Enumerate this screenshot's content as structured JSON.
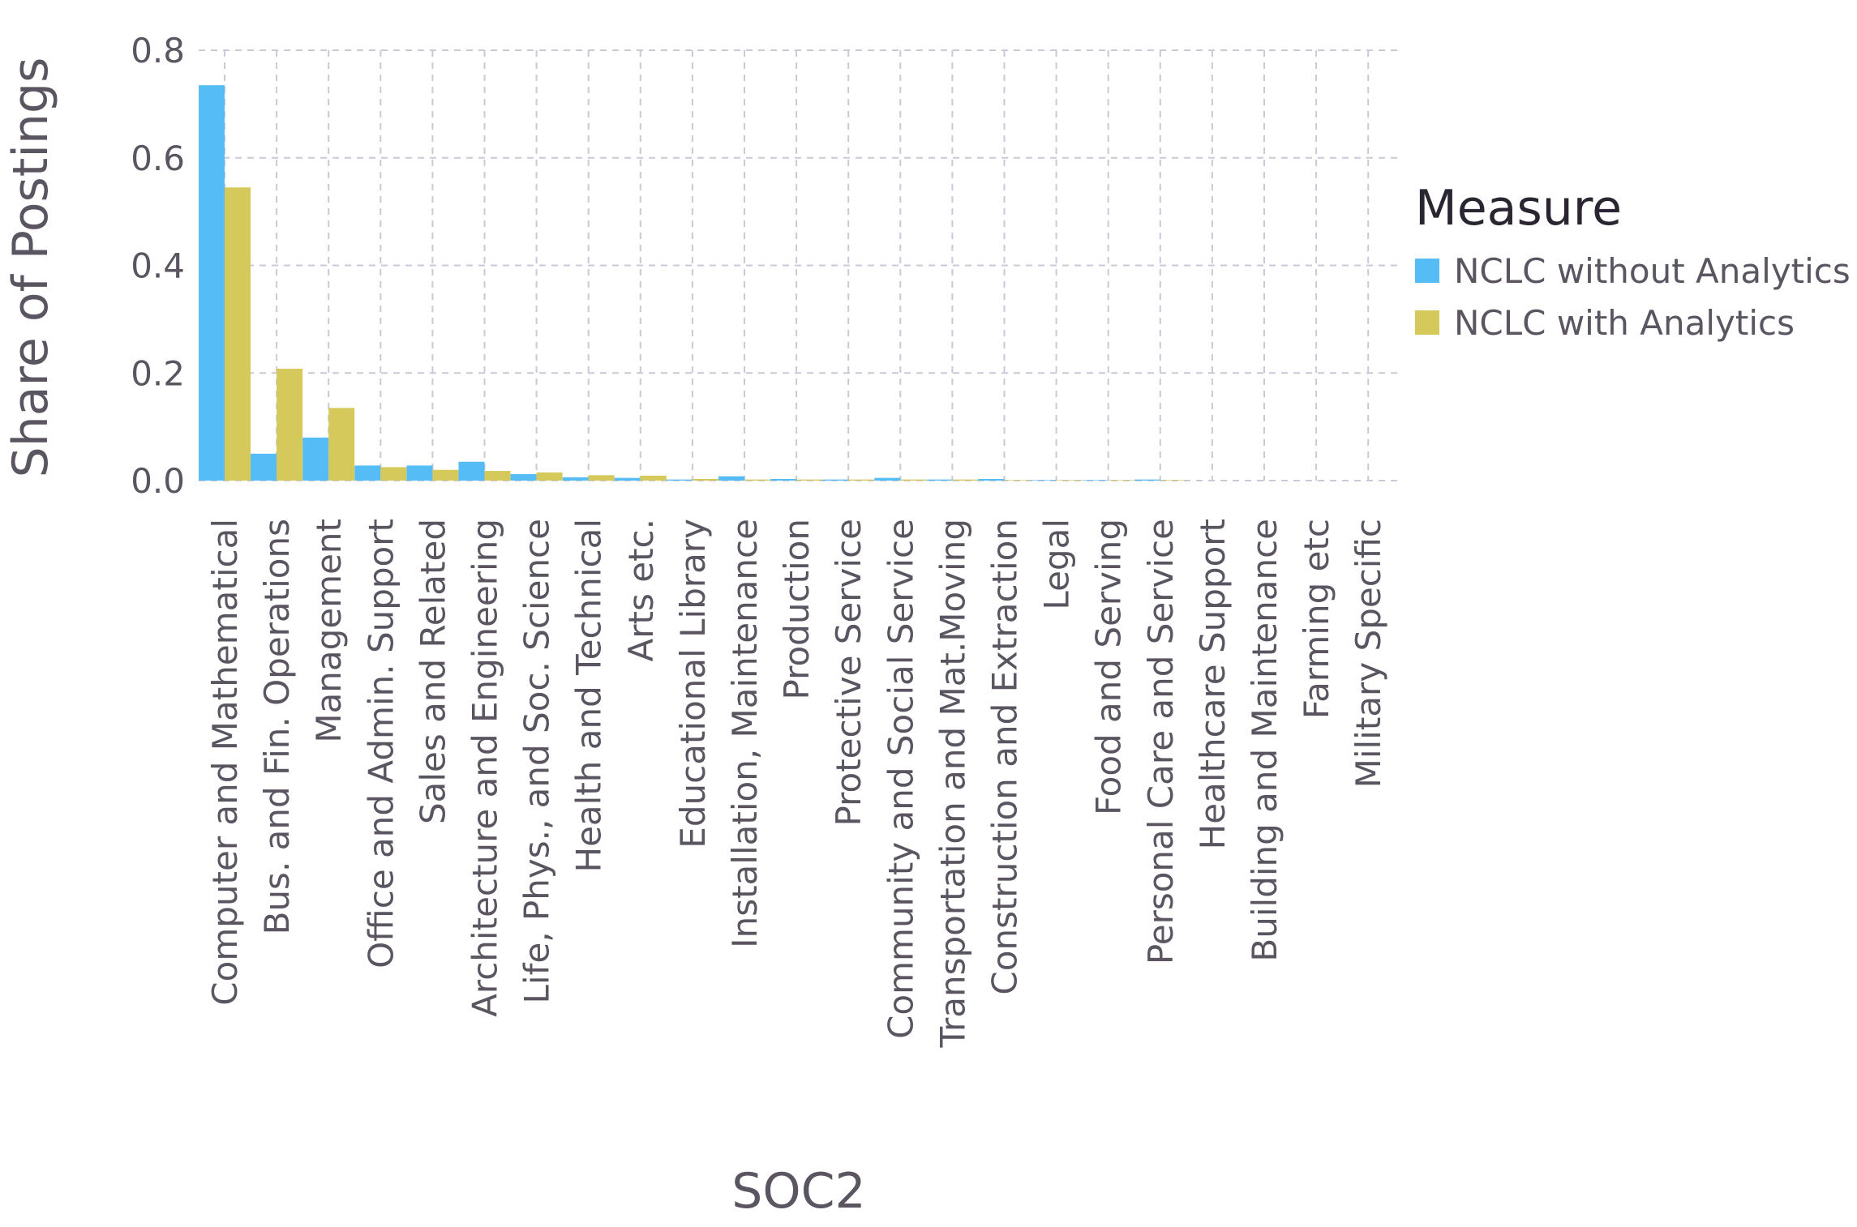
{
  "chart_data": {
    "type": "bar",
    "title": "",
    "xlabel": "SOC2",
    "ylabel": "Share of Postings",
    "ylim": [
      0,
      0.8
    ],
    "yticks": [
      "0.0",
      "0.2",
      "0.4",
      "0.6",
      "0.8"
    ],
    "grid": true,
    "legend_position": "right",
    "legend_title": "Measure",
    "categories": [
      "Computer and Mathematical",
      "Bus. and Fin. Operations",
      "Management",
      "Office and Admin. Support",
      "Sales and Related",
      "Architecture and Engineering",
      "Life, Phys., and Soc. Science",
      "Health and Technical",
      "Arts etc.",
      "Educational Library",
      "Installation, Maintenance",
      "Production",
      "Protective Service",
      "Community and Social Service",
      "Transportation and Mat.Moving",
      "Construction and Extraction",
      "Legal",
      "Food and Serving",
      "Personal Care and Service",
      "Healthcare Support",
      "Building and Maintenance",
      "Farming etc",
      "Military Specific"
    ],
    "series": [
      {
        "name": "NCLC without Analytics",
        "color": "#56bcf5",
        "values": [
          0.735,
          0.05,
          0.08,
          0.028,
          0.028,
          0.035,
          0.012,
          0.006,
          0.005,
          0.002,
          0.008,
          0.003,
          0.002,
          0.005,
          0.002,
          0.003,
          0.001,
          0.001,
          0.002,
          0.0,
          0.0,
          0.0,
          0.0
        ]
      },
      {
        "name": "NCLC with Analytics",
        "color": "#d4c95a",
        "values": [
          0.545,
          0.208,
          0.135,
          0.025,
          0.02,
          0.018,
          0.015,
          0.01,
          0.009,
          0.003,
          0.002,
          0.002,
          0.002,
          0.002,
          0.002,
          0.001,
          0.001,
          0.001,
          0.001,
          0.0,
          0.0,
          0.0,
          0.0
        ]
      }
    ]
  }
}
